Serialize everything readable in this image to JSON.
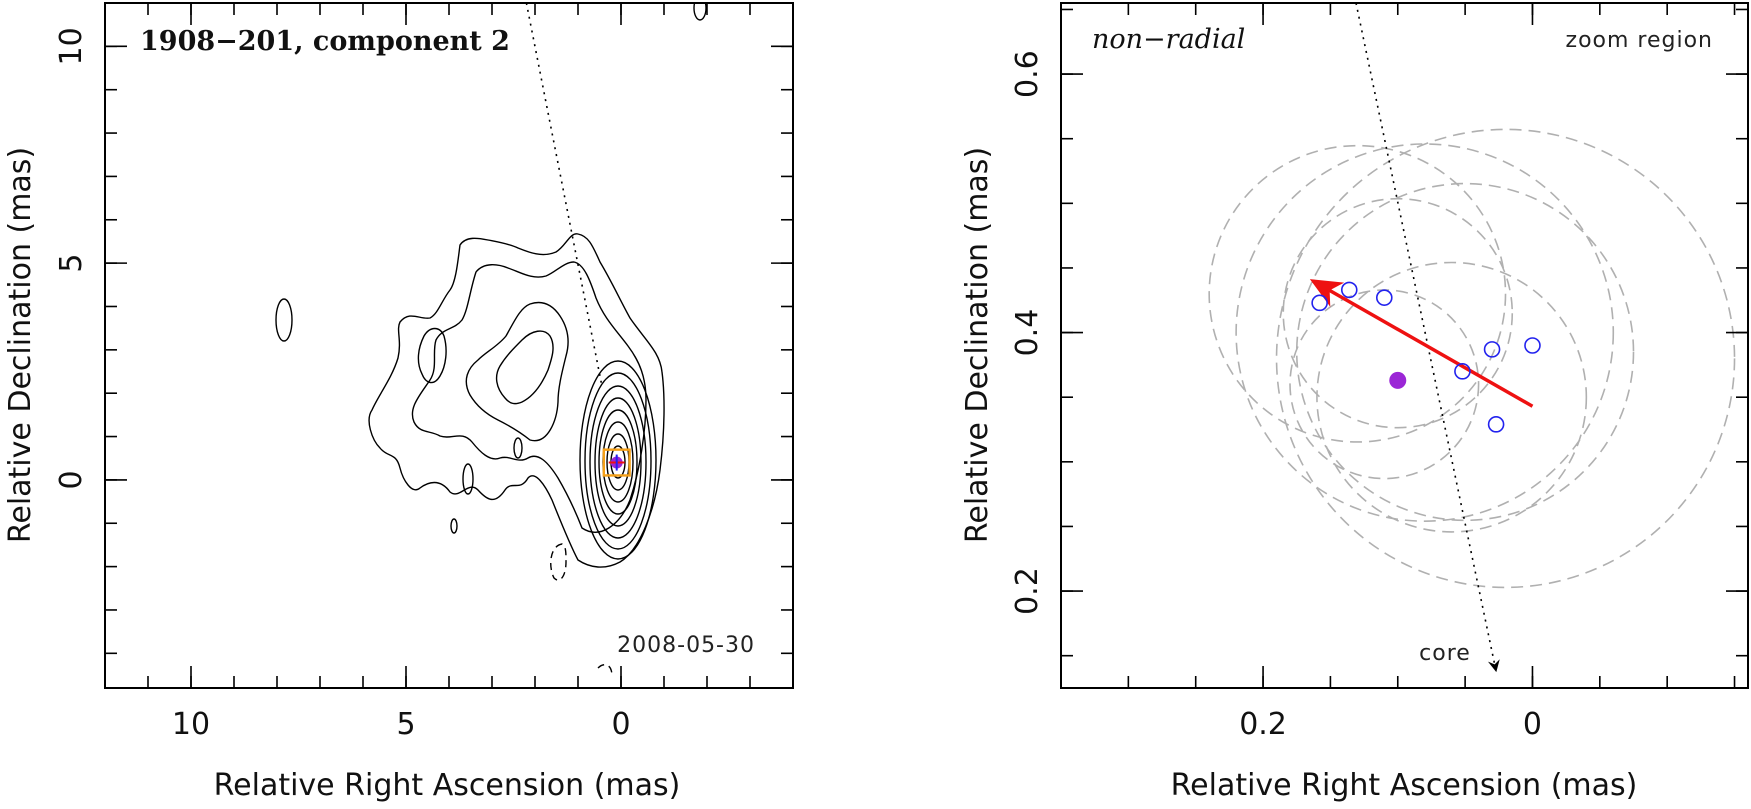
{
  "figure": {
    "colors": {
      "marker_blue": "#2222ee",
      "arrow_red": "#ee1111",
      "fill_purple": "#9b26d6",
      "box_orange": "#f5a018",
      "circle_grey": "#b0b0b0",
      "core_arrow": "#000000"
    }
  },
  "chart_data": [
    {
      "type": "scatter",
      "panel": "left",
      "title": "1908−201, component 2",
      "annotation": "2008-05-30",
      "xlabel": "Relative Right Ascension (mas)",
      "ylabel": "Relative Declination (mas)",
      "xlim": [
        12,
        -4
      ],
      "ylim": [
        -4.8,
        11
      ],
      "xticks": [
        {
          "value": 10,
          "label": "10"
        },
        {
          "value": 5,
          "label": "5"
        },
        {
          "value": 0,
          "label": "0"
        }
      ],
      "yticks": [
        {
          "value": 10,
          "label": "10"
        },
        {
          "value": 5,
          "label": "5"
        },
        {
          "value": 0,
          "label": "0"
        }
      ],
      "core_direction_line": {
        "from": [
          2.2,
          11
        ],
        "to": [
          0.45,
          2.2
        ]
      },
      "component_marker": {
        "x": 0.1,
        "y": 0.4,
        "zoom_box_half_width": 0.3
      },
      "contour_image": "VLBI total intensity contours"
    },
    {
      "type": "scatter",
      "panel": "right",
      "title": "non−radial",
      "zoom_label": "zoom region",
      "core_label": "core",
      "xlabel": "Relative Right Ascension (mas)",
      "ylabel": "Relative Declination (mas)",
      "xlim": [
        0.35,
        -0.16
      ],
      "ylim": [
        0.125,
        0.655
      ],
      "xticks": [
        {
          "value": 0.2,
          "label": "0.2"
        },
        {
          "value": 0,
          "label": "0"
        }
      ],
      "yticks": [
        {
          "value": 0.6,
          "label": "0.6"
        },
        {
          "value": 0.4,
          "label": "0.4"
        },
        {
          "value": 0.2,
          "label": "0.2"
        }
      ],
      "epoch_positions": [
        {
          "x": 0.158,
          "y": 0.423
        },
        {
          "x": 0.136,
          "y": 0.433
        },
        {
          "x": 0.11,
          "y": 0.427
        },
        {
          "x": 0.03,
          "y": 0.387
        },
        {
          "x": 0.052,
          "y": 0.37
        },
        {
          "x": 0.0,
          "y": 0.39
        },
        {
          "x": 0.027,
          "y": 0.329
        }
      ],
      "mean_position": {
        "x": 0.1,
        "y": 0.363
      },
      "velocity_vector": {
        "from": [
          0.0,
          0.343
        ],
        "to": [
          0.163,
          0.44
        ]
      },
      "core_direction": {
        "from": [
          0.131,
          0.655
        ],
        "to": [
          0.027,
          0.138
        ]
      },
      "uncertainty_circles": [
        {
          "x": 0.13,
          "y": 0.43,
          "r": 0.11
        },
        {
          "x": 0.1,
          "y": 0.415,
          "r": 0.085
        },
        {
          "x": 0.08,
          "y": 0.4,
          "r": 0.14
        },
        {
          "x": 0.05,
          "y": 0.385,
          "r": 0.125
        },
        {
          "x": 0.02,
          "y": 0.38,
          "r": 0.17
        },
        {
          "x": 0.11,
          "y": 0.36,
          "r": 0.07
        },
        {
          "x": 0.06,
          "y": 0.35,
          "r": 0.1
        }
      ]
    }
  ]
}
